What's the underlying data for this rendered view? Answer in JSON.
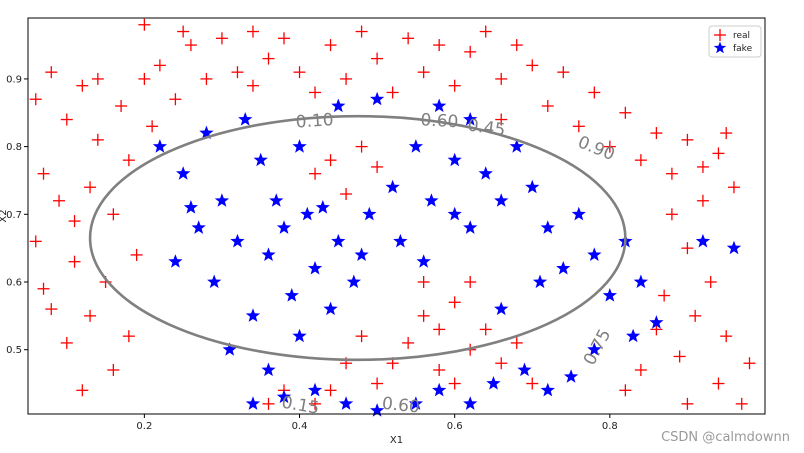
{
  "chart_data": {
    "type": "scatter",
    "title": "",
    "xlabel": "X1",
    "ylabel": "X2",
    "xlim": [
      0.05,
      1.0
    ],
    "ylim": [
      0.405,
      0.99
    ],
    "xticks": [
      0.2,
      0.4,
      0.6,
      0.8
    ],
    "yticks": [
      0.5,
      0.6,
      0.7,
      0.8,
      0.9
    ],
    "grid": false,
    "legend": {
      "placement": "top-right",
      "entries": [
        {
          "label": "real",
          "marker": "plus",
          "color": "#ff0000"
        },
        {
          "label": "fake",
          "marker": "star",
          "color": "#0000ff"
        }
      ]
    },
    "series": [
      {
        "name": "real",
        "marker": "plus",
        "color": "#ff0000",
        "points": [
          [
            0.06,
            0.87
          ],
          [
            0.08,
            0.91
          ],
          [
            0.1,
            0.84
          ],
          [
            0.07,
            0.76
          ],
          [
            0.09,
            0.72
          ],
          [
            0.06,
            0.66
          ],
          [
            0.11,
            0.63
          ],
          [
            0.08,
            0.56
          ],
          [
            0.1,
            0.51
          ],
          [
            0.07,
            0.59
          ],
          [
            0.12,
            0.89
          ],
          [
            0.14,
            0.81
          ],
          [
            0.13,
            0.74
          ],
          [
            0.11,
            0.69
          ],
          [
            0.15,
            0.6
          ],
          [
            0.13,
            0.55
          ],
          [
            0.16,
            0.47
          ],
          [
            0.12,
            0.44
          ],
          [
            0.17,
            0.86
          ],
          [
            0.18,
            0.78
          ],
          [
            0.16,
            0.7
          ],
          [
            0.19,
            0.64
          ],
          [
            0.18,
            0.52
          ],
          [
            0.2,
            0.9
          ],
          [
            0.21,
            0.83
          ],
          [
            0.22,
            0.92
          ],
          [
            0.24,
            0.87
          ],
          [
            0.26,
            0.95
          ],
          [
            0.28,
            0.9
          ],
          [
            0.3,
            0.96
          ],
          [
            0.32,
            0.91
          ],
          [
            0.34,
            0.97
          ],
          [
            0.36,
            0.93
          ],
          [
            0.38,
            0.96
          ],
          [
            0.4,
            0.91
          ],
          [
            0.42,
            0.88
          ],
          [
            0.44,
            0.95
          ],
          [
            0.46,
            0.9
          ],
          [
            0.48,
            0.97
          ],
          [
            0.5,
            0.93
          ],
          [
            0.52,
            0.88
          ],
          [
            0.54,
            0.96
          ],
          [
            0.56,
            0.91
          ],
          [
            0.58,
            0.95
          ],
          [
            0.6,
            0.89
          ],
          [
            0.62,
            0.94
          ],
          [
            0.64,
            0.97
          ],
          [
            0.66,
            0.9
          ],
          [
            0.68,
            0.95
          ],
          [
            0.7,
            0.92
          ],
          [
            0.72,
            0.86
          ],
          [
            0.74,
            0.91
          ],
          [
            0.76,
            0.83
          ],
          [
            0.78,
            0.88
          ],
          [
            0.8,
            0.8
          ],
          [
            0.82,
            0.85
          ],
          [
            0.84,
            0.78
          ],
          [
            0.86,
            0.82
          ],
          [
            0.88,
            0.76
          ],
          [
            0.9,
            0.81
          ],
          [
            0.92,
            0.77
          ],
          [
            0.94,
            0.79
          ],
          [
            0.96,
            0.74
          ],
          [
            0.95,
            0.82
          ],
          [
            0.92,
            0.72
          ],
          [
            0.88,
            0.7
          ],
          [
            0.9,
            0.65
          ],
          [
            0.93,
            0.6
          ],
          [
            0.87,
            0.58
          ],
          [
            0.91,
            0.55
          ],
          [
            0.95,
            0.52
          ],
          [
            0.98,
            0.48
          ],
          [
            0.94,
            0.45
          ],
          [
            0.89,
            0.49
          ],
          [
            0.86,
            0.53
          ],
          [
            0.84,
            0.47
          ],
          [
            0.97,
            0.42
          ],
          [
            0.9,
            0.42
          ],
          [
            0.82,
            0.44
          ],
          [
            0.2,
            0.98
          ],
          [
            0.58,
            0.53
          ],
          [
            0.6,
            0.57
          ],
          [
            0.56,
            0.55
          ],
          [
            0.62,
            0.5
          ],
          [
            0.54,
            0.51
          ],
          [
            0.58,
            0.47
          ],
          [
            0.52,
            0.48
          ],
          [
            0.64,
            0.53
          ],
          [
            0.6,
            0.45
          ],
          [
            0.5,
            0.45
          ],
          [
            0.48,
            0.52
          ],
          [
            0.46,
            0.48
          ],
          [
            0.44,
            0.44
          ],
          [
            0.66,
            0.48
          ],
          [
            0.68,
            0.51
          ],
          [
            0.56,
            0.6
          ],
          [
            0.62,
            0.6
          ],
          [
            0.7,
            0.45
          ],
          [
            0.42,
            0.42
          ],
          [
            0.38,
            0.44
          ],
          [
            0.36,
            0.42
          ],
          [
            0.44,
            0.78
          ],
          [
            0.46,
            0.73
          ],
          [
            0.48,
            0.8
          ],
          [
            0.42,
            0.76
          ],
          [
            0.5,
            0.77
          ],
          [
            0.25,
            0.97
          ],
          [
            0.34,
            0.89
          ],
          [
            0.66,
            0.84
          ],
          [
            0.14,
            0.9
          ]
        ]
      },
      {
        "name": "fake",
        "marker": "star",
        "color": "#0000ff",
        "points": [
          [
            0.22,
            0.8
          ],
          [
            0.25,
            0.76
          ],
          [
            0.28,
            0.82
          ],
          [
            0.3,
            0.72
          ],
          [
            0.27,
            0.68
          ],
          [
            0.24,
            0.63
          ],
          [
            0.29,
            0.6
          ],
          [
            0.32,
            0.66
          ],
          [
            0.35,
            0.78
          ],
          [
            0.33,
            0.84
          ],
          [
            0.37,
            0.72
          ],
          [
            0.36,
            0.64
          ],
          [
            0.39,
            0.58
          ],
          [
            0.34,
            0.55
          ],
          [
            0.31,
            0.5
          ],
          [
            0.36,
            0.47
          ],
          [
            0.4,
            0.52
          ],
          [
            0.42,
            0.62
          ],
          [
            0.41,
            0.7
          ],
          [
            0.45,
            0.66
          ],
          [
            0.47,
            0.6
          ],
          [
            0.44,
            0.56
          ],
          [
            0.49,
            0.7
          ],
          [
            0.52,
            0.74
          ],
          [
            0.55,
            0.8
          ],
          [
            0.57,
            0.72
          ],
          [
            0.6,
            0.78
          ],
          [
            0.62,
            0.84
          ],
          [
            0.58,
            0.86
          ],
          [
            0.53,
            0.66
          ],
          [
            0.56,
            0.63
          ],
          [
            0.64,
            0.76
          ],
          [
            0.66,
            0.72
          ],
          [
            0.68,
            0.8
          ],
          [
            0.7,
            0.74
          ],
          [
            0.72,
            0.68
          ],
          [
            0.74,
            0.62
          ],
          [
            0.71,
            0.6
          ],
          [
            0.76,
            0.7
          ],
          [
            0.78,
            0.64
          ],
          [
            0.8,
            0.58
          ],
          [
            0.82,
            0.66
          ],
          [
            0.84,
            0.6
          ],
          [
            0.86,
            0.54
          ],
          [
            0.83,
            0.52
          ],
          [
            0.78,
            0.5
          ],
          [
            0.75,
            0.46
          ],
          [
            0.72,
            0.44
          ],
          [
            0.69,
            0.47
          ],
          [
            0.65,
            0.45
          ],
          [
            0.62,
            0.42
          ],
          [
            0.58,
            0.44
          ],
          [
            0.55,
            0.42
          ],
          [
            0.5,
            0.41
          ],
          [
            0.46,
            0.42
          ],
          [
            0.42,
            0.44
          ],
          [
            0.38,
            0.43
          ],
          [
            0.34,
            0.42
          ],
          [
            0.96,
            0.65
          ],
          [
            0.92,
            0.66
          ],
          [
            0.45,
            0.86
          ],
          [
            0.5,
            0.87
          ],
          [
            0.4,
            0.8
          ],
          [
            0.62,
            0.68
          ],
          [
            0.6,
            0.7
          ],
          [
            0.38,
            0.68
          ],
          [
            0.26,
            0.71
          ],
          [
            0.43,
            0.71
          ],
          [
            0.66,
            0.56
          ],
          [
            0.48,
            0.64
          ]
        ]
      }
    ],
    "contour_labels": [
      "0.10",
      "0.60",
      "0.45",
      "0.90",
      "0.75",
      "0.15",
      "0.60"
    ]
  },
  "watermark": "CSDN @calmdownn"
}
